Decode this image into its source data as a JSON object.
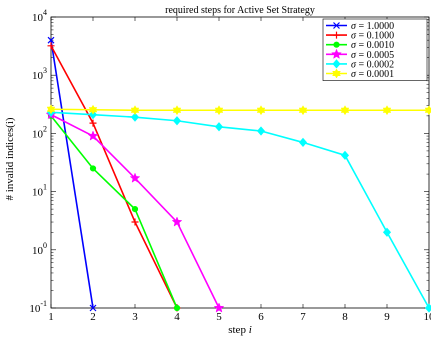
{
  "chart_data": {
    "type": "line",
    "title": "required steps for Active Set Strategy",
    "xlabel": "step i",
    "ylabel": "# invalid indices(i)",
    "x_ticks": [
      "1",
      "2",
      "3",
      "4",
      "5",
      "6",
      "7",
      "8",
      "9",
      "10"
    ],
    "y_ticks": [
      {
        "base": "10",
        "exp": "-1"
      },
      {
        "base": "10",
        "exp": "0"
      },
      {
        "base": "10",
        "exp": "1"
      },
      {
        "base": "10",
        "exp": "2"
      },
      {
        "base": "10",
        "exp": "3"
      },
      {
        "base": "10",
        "exp": "4"
      }
    ],
    "xlim": [
      1,
      10
    ],
    "ylim": [
      0.1,
      10000
    ],
    "yscale": "log",
    "grid": false,
    "legend_position": "top-right",
    "series": [
      {
        "name": "σ = 1.0000",
        "color": "#0000ff",
        "marker": "x",
        "x": [
          1,
          2
        ],
        "y": [
          4000,
          0.1
        ]
      },
      {
        "name": "σ = 0.1000",
        "color": "#ff0000",
        "marker": "plus",
        "x": [
          1,
          2,
          3,
          4
        ],
        "y": [
          3200,
          150,
          3,
          0.1
        ]
      },
      {
        "name": "σ = 0.0010",
        "color": "#00ff00",
        "marker": "circle",
        "x": [
          1,
          2,
          3,
          4
        ],
        "y": [
          200,
          25,
          5,
          0.1
        ]
      },
      {
        "name": "σ = 0.0005",
        "color": "#ff00ff",
        "marker": "star",
        "x": [
          1,
          2,
          3,
          4,
          5
        ],
        "y": [
          210,
          90,
          17,
          3,
          0.1
        ]
      },
      {
        "name": "σ = 0.0002",
        "color": "#00ffff",
        "marker": "diamond",
        "x": [
          1,
          2,
          3,
          4,
          5,
          6,
          7,
          8,
          9,
          10
        ],
        "y": [
          230,
          210,
          190,
          165,
          130,
          110,
          70,
          42,
          2,
          0.1
        ]
      },
      {
        "name": "σ = 0.0001",
        "color": "#ffff00",
        "marker": "hexagram",
        "x": [
          1,
          2,
          3,
          4,
          5,
          6,
          7,
          8,
          9,
          10
        ],
        "y": [
          260,
          255,
          250,
          250,
          250,
          250,
          250,
          250,
          250,
          250
        ]
      }
    ]
  }
}
